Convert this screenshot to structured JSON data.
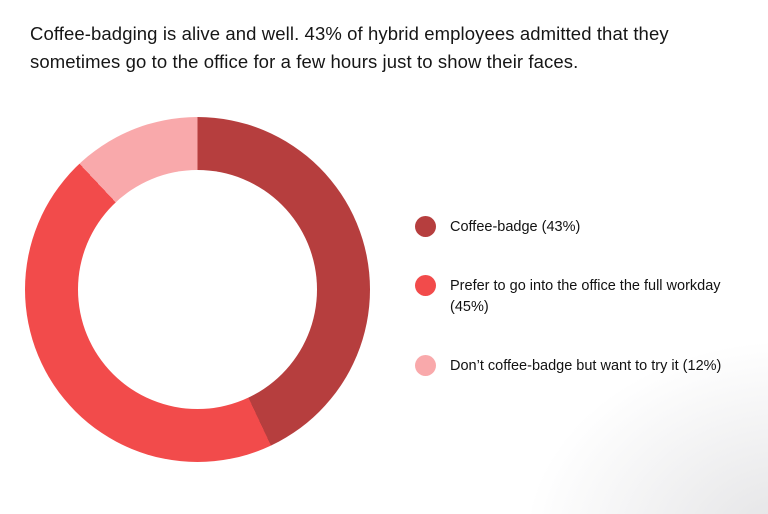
{
  "chart_data": {
    "type": "pie",
    "donut": true,
    "legend_position": "right",
    "title": "Coffee-badging is alive and well. 43% of hybrid employees admitted that they sometimes go to the office for a few hours just to show their faces.",
    "segments": [
      {
        "label": "Coffee-badge (43%)",
        "value": 43,
        "color": "#b63e3e"
      },
      {
        "label": "Prefer to go into the office the full workday (45%)",
        "value": 45,
        "color": "#f24b4b"
      },
      {
        "label": "Don’t coffee-badge but want to try it (12%)",
        "value": 12,
        "color": "#f9a9ab"
      }
    ],
    "start_angle_deg": 0,
    "direction": "clockwise",
    "hole_ratio": 0.69,
    "background": "#ffffff"
  }
}
